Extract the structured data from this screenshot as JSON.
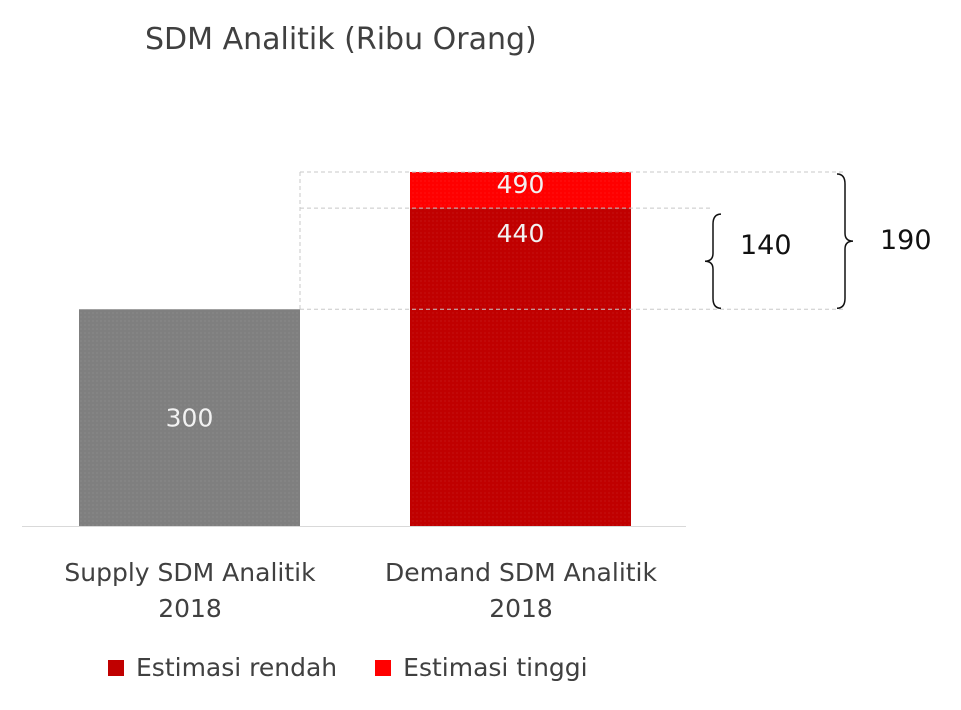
{
  "chart_data": {
    "type": "bar",
    "title": "SDM Analitik (Ribu Orang)",
    "categories": [
      "Supply SDM Analitik\n2018",
      "Demand SDM Analitik\n2018"
    ],
    "series": [
      {
        "name": "Estimasi rendah",
        "color": "#c00000",
        "values": [
          300,
          440
        ],
        "labels": [
          "300",
          "440"
        ]
      },
      {
        "name": "Estimasi tinggi",
        "color": "#ff0000",
        "values": [
          null,
          50
        ],
        "labels": [
          "",
          "490"
        ]
      }
    ],
    "supply_color": "#7f7f7f",
    "ylim": [
      0,
      490
    ],
    "annotations": [
      {
        "from": 300,
        "to": 440,
        "label": "140"
      },
      {
        "from": 300,
        "to": 490,
        "label": "190"
      }
    ],
    "legend_position": "bottom",
    "grid": false
  }
}
